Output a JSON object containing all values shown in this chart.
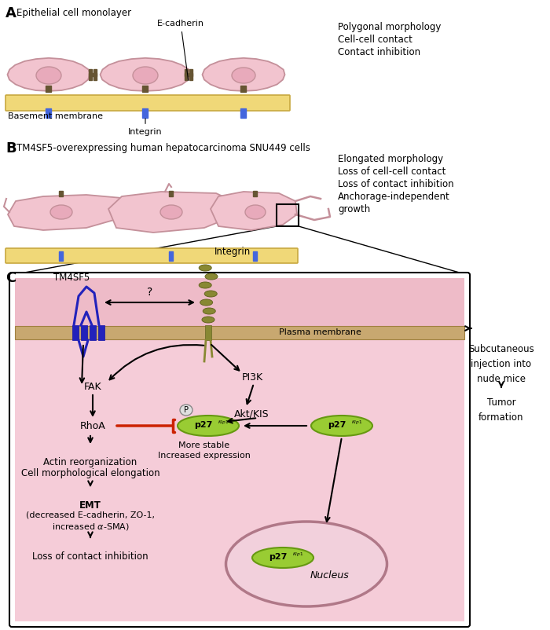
{
  "bg_color": "#ffffff",
  "cell_color": "#f2c4cf",
  "cell_outline": "#c4909a",
  "nucleus_fill": "#e8aabb",
  "basement_color": "#f0d878",
  "basement_outline": "#c8a840",
  "integrin_blue": "#4466dd",
  "integrin_brown": "#665533",
  "ecadherin_color": "#665533",
  "blue_protein": "#2222bb",
  "olive_protein": "#888833",
  "panel_A_title": "Epithelial cell monolayer",
  "panel_A_right": [
    "Polygonal morphology",
    "Cell-cell contact",
    "Contact inhibition"
  ],
  "panel_B_title": "TM4SF5-overexpressing human hepatocarcinoma SNU449 cells",
  "panel_B_right": [
    "Elongated morphology",
    "Loss of cell-cell contact",
    "Loss of contact inhibition",
    "Anchorage-independent",
    "growth"
  ],
  "p27_green": "#99cc33",
  "p27_outline": "#669911",
  "red_inhibit": "#cc2200",
  "plasma_mem_color": "#c8a870",
  "cyto_pink": "#f5ccd8",
  "extra_pink": "#eebbc8",
  "nucleus_border": "#b07888",
  "arrow_black": "#111111"
}
